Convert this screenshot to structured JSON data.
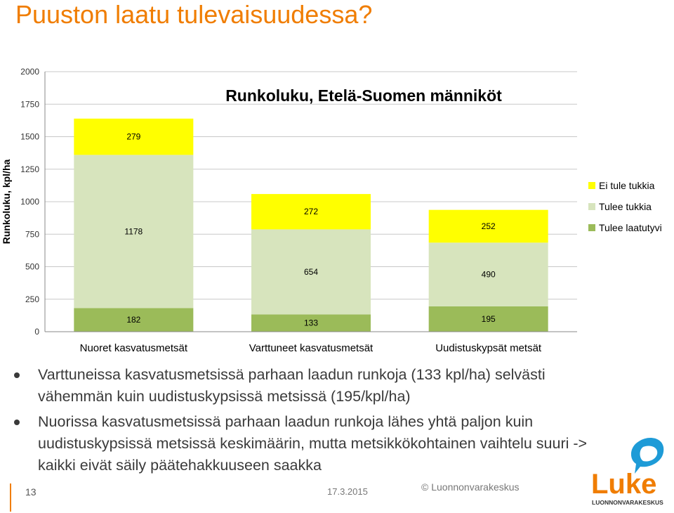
{
  "slide": {
    "title": "Puuston laatu tulevaisuudessa?",
    "bullets": [
      "Varttuneissa kasvatusmetsissä parhaan laadun runkoja (133 kpl/ha) selvästi vähemmän kuin uudistuskypsissä metsissä (195/kpl/ha)",
      "Nuorissa kasvatusmetsissä parhaan laadun runkoja lähes yhtä paljon kuin uudistuskypsissä metsissä keskimäärin, mutta metsikkökohtainen vaihtelu suuri -> kaikki eivät säily päätehakkuuseen saakka"
    ],
    "page_number": "13",
    "date": "17.3.2015",
    "copyright": "© Luonnonvarakeskus",
    "logo_text": "Luke",
    "logo_subtext": "LUONNONVARAKESKUS",
    "brand_color": "#F07D00"
  },
  "chart_data": {
    "type": "bar",
    "stacked": true,
    "title": "Runkoluku, Etelä-Suomen männiköt",
    "ylabel": "Runkoluku, kpl/ha",
    "xlabel": "",
    "ylim": [
      0,
      2000
    ],
    "yticks": [
      0,
      250,
      500,
      750,
      1000,
      1250,
      1500,
      1750,
      2000
    ],
    "grid": true,
    "legend": "right",
    "categories": [
      "Nuoret kasvatusmetsät",
      "Varttuneet kasvatusmetsät",
      "Uudistuskypsät metsät"
    ],
    "series": [
      {
        "name": "Tulee laatutyvi",
        "color": "#9BBB59",
        "values": [
          182,
          133,
          195
        ]
      },
      {
        "name": "Tulee tukkia",
        "color": "#D7E4BD",
        "values": [
          1178,
          654,
          490
        ]
      },
      {
        "name": "Ei tule tukkia",
        "color": "#FFFF00",
        "values": [
          279,
          272,
          252
        ]
      }
    ]
  }
}
